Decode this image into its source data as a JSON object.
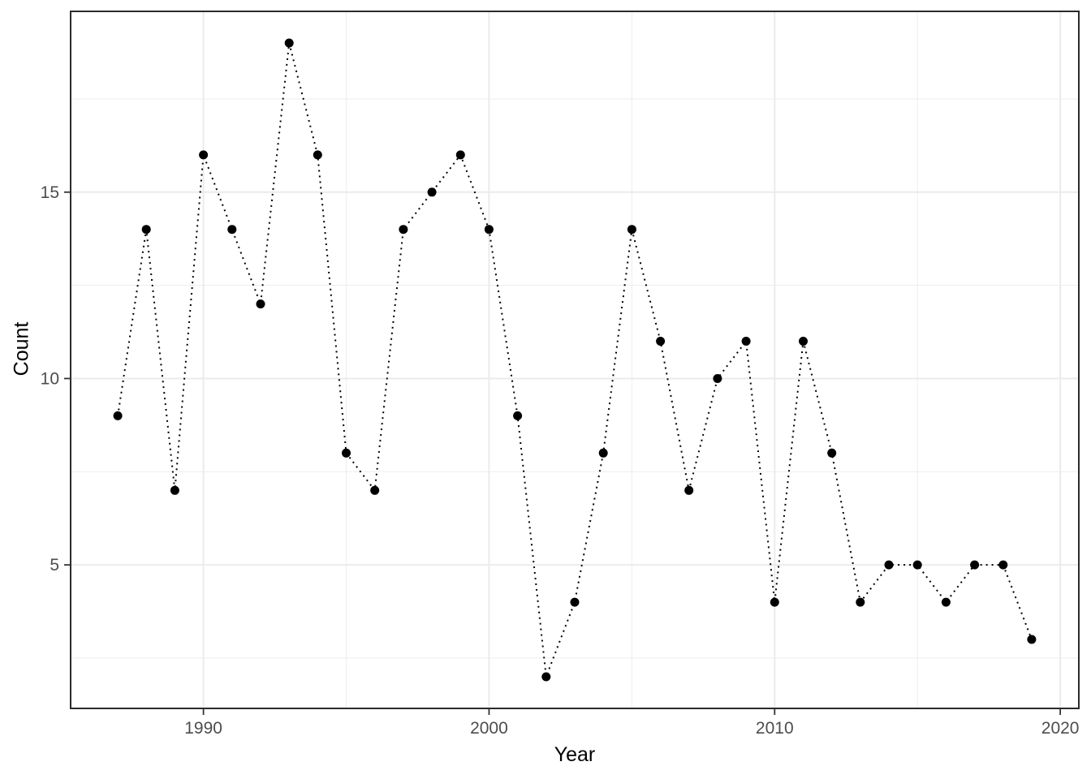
{
  "chart_data": {
    "type": "line",
    "title": "",
    "xlabel": "Year",
    "ylabel": "Count",
    "line_style": "dotted",
    "marker": "point",
    "x": [
      1987,
      1988,
      1989,
      1990,
      1991,
      1992,
      1993,
      1994,
      1995,
      1996,
      1997,
      1998,
      1999,
      2000,
      2001,
      2002,
      2003,
      2004,
      2005,
      2006,
      2007,
      2008,
      2009,
      2010,
      2011,
      2012,
      2013,
      2014,
      2015,
      2016,
      2017,
      2018,
      2019
    ],
    "values": [
      9,
      14,
      7,
      16,
      14,
      12,
      19,
      16,
      8,
      7,
      14,
      15,
      16,
      14,
      9,
      2,
      4,
      8,
      14,
      11,
      7,
      10,
      11,
      4,
      11,
      8,
      4,
      5,
      5,
      4,
      5,
      5,
      3
    ],
    "x_ticks": [
      1990,
      2000,
      2010,
      2020
    ],
    "y_ticks": [
      5,
      10,
      15
    ],
    "x_minor_step": 5,
    "y_minor_step": 2.5,
    "xlim": [
      1985.35,
      2020.65
    ],
    "ylim": [
      1.15,
      19.85
    ],
    "grid": true,
    "legend": false,
    "colors": {
      "background": "#FFFFFF",
      "panel_background": "#FFFFFF",
      "panel_border": "#2B2B2B",
      "grid_major": "#EBEBEB",
      "grid_minor": "#EDEDED",
      "tick_mark": "#333333",
      "tick_label": "#4D4D4D",
      "axis_title": "#000000",
      "line": "#000000",
      "point": "#000000"
    }
  }
}
